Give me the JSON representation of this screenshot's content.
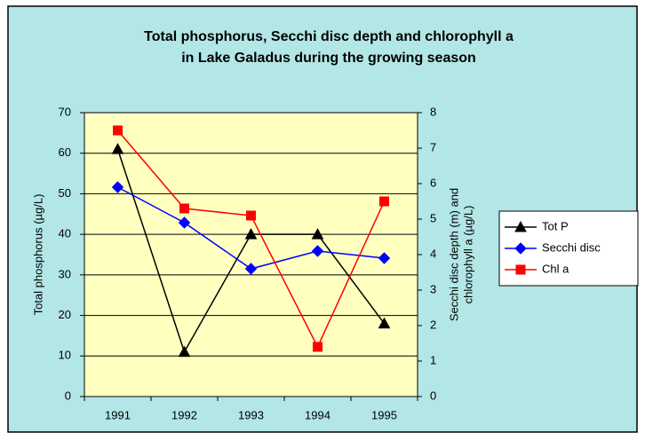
{
  "chart_data": {
    "type": "line",
    "title": [
      "Total phosphorus, Secchi disc depth and chlorophyll a",
      "in Lake Galadus during the growing season"
    ],
    "ylabel": "Total phosphorus (µg/L)",
    "y2label": [
      "Secchi disc depth (m) and",
      "chlorophyll a  (µg/L)"
    ],
    "categories": [
      "1991",
      "1992",
      "1993",
      "1994",
      "1995"
    ],
    "series": [
      {
        "name": "Tot P",
        "color": "#000000",
        "marker": "triangle",
        "values": [
          61,
          11,
          40,
          40,
          18
        ]
      },
      {
        "name": "Secchi disc",
        "color": "#0000ff",
        "marker": "diamond",
        "axis": "y2",
        "values": [
          5.9,
          4.9,
          3.6,
          4.1,
          3.9
        ]
      },
      {
        "name": "Chl a",
        "color": "#ff0000",
        "marker": "square",
        "axis": "y2",
        "values": [
          7.5,
          5.3,
          5.1,
          1.4,
          5.5
        ]
      }
    ],
    "ylim": [
      0,
      70
    ],
    "yticks": [
      0,
      10,
      20,
      30,
      40,
      50,
      60,
      70
    ],
    "y2lim": [
      0,
      8
    ],
    "y2ticks": [
      0,
      1,
      2,
      3,
      4,
      5,
      6,
      7,
      8
    ],
    "grid": true,
    "legend": "right"
  }
}
